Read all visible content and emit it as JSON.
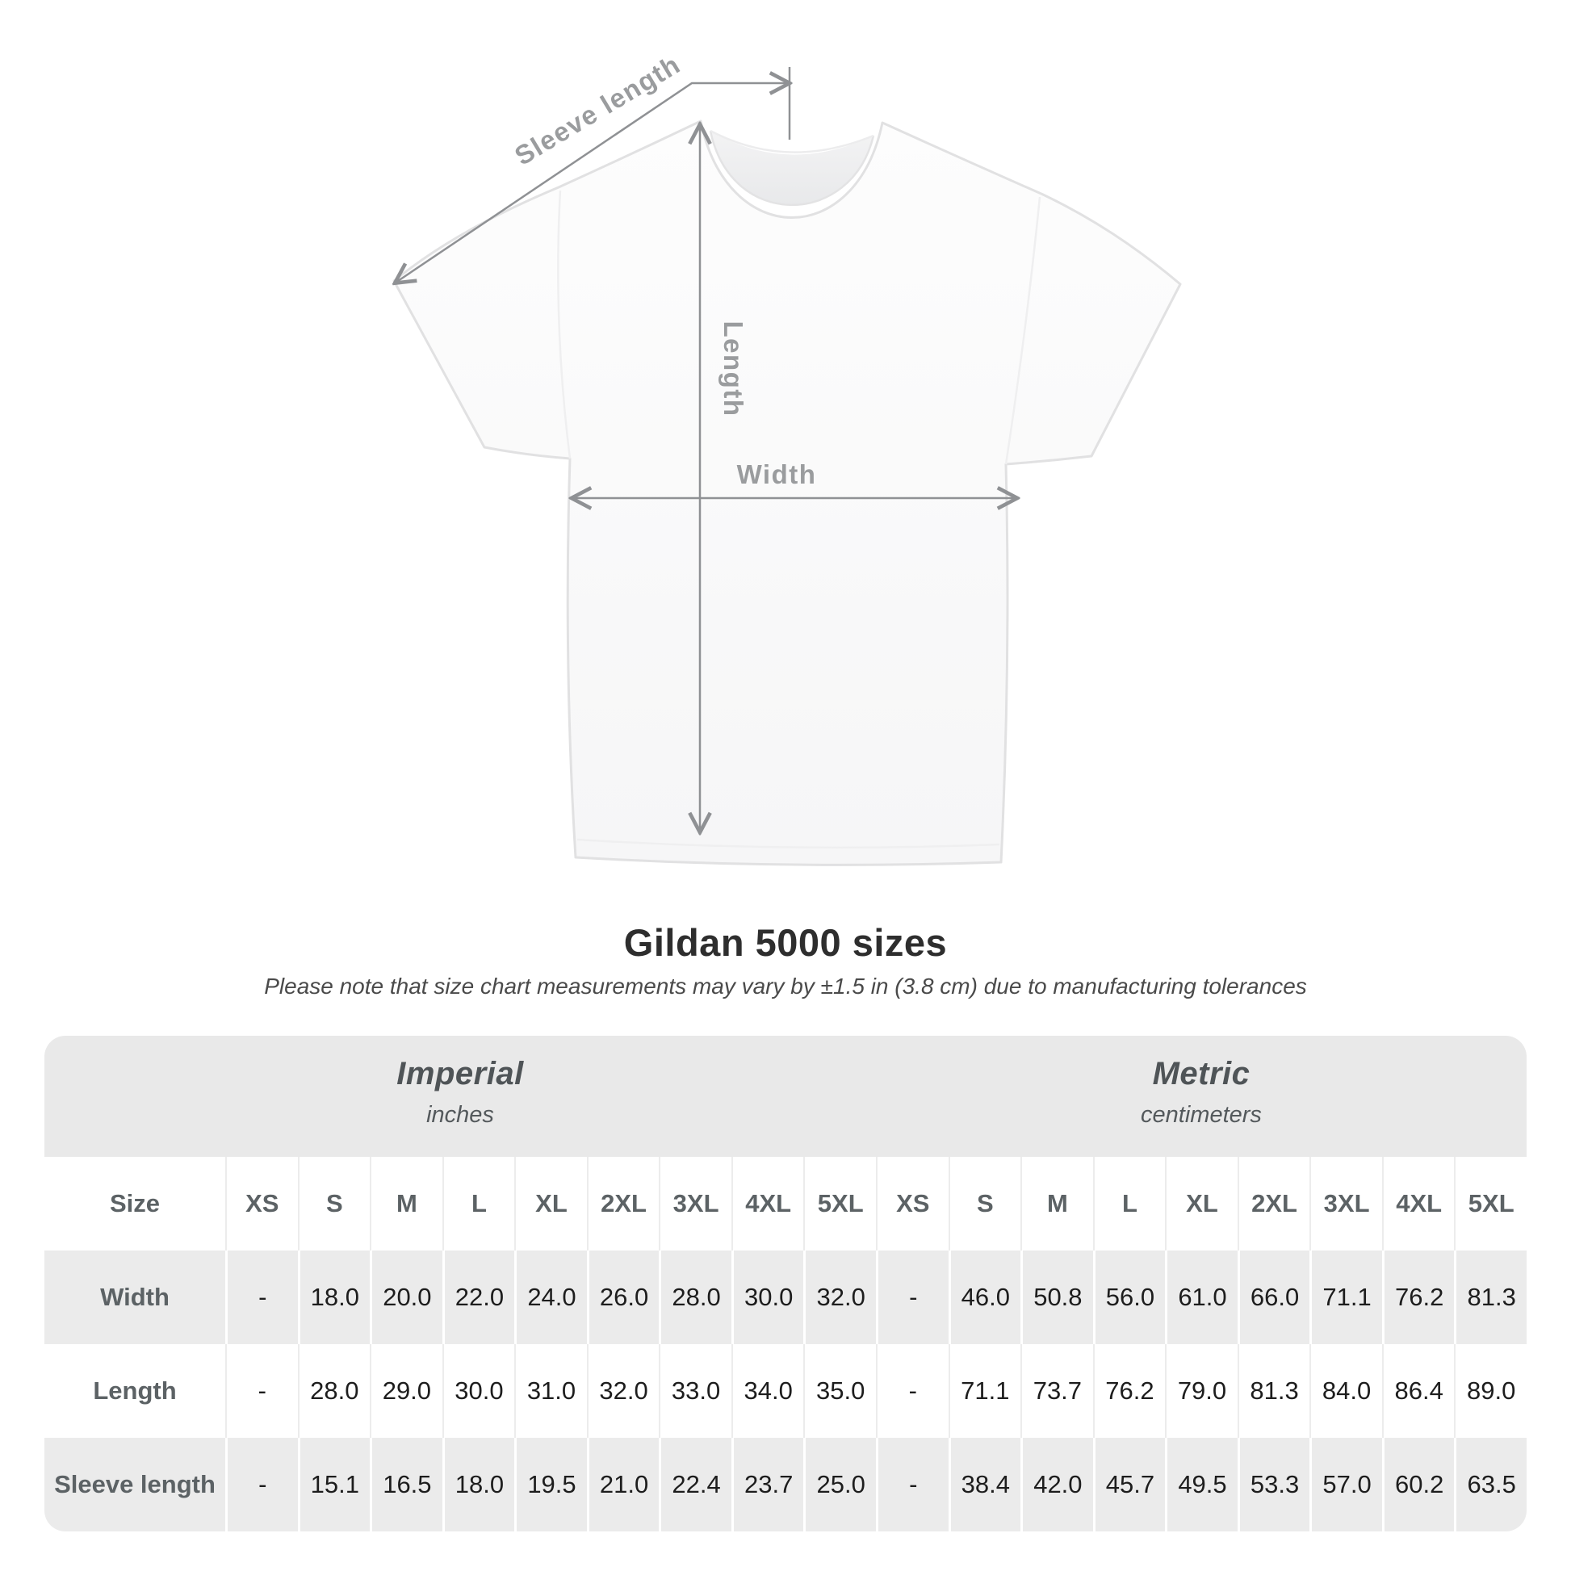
{
  "diagram": {
    "sleeve_length_label": "Sleeve length",
    "length_label": "Length",
    "width_label": "Width"
  },
  "chart_data": {
    "type": "table",
    "title": "Gildan 5000 sizes",
    "subtitle": "Please note that size chart measurements may vary by ±1.5 in (3.8 cm) due to manufacturing tolerances",
    "unit_groups": [
      {
        "label": "Imperial",
        "sublabel": "inches"
      },
      {
        "label": "Metric",
        "sublabel": "centimeters"
      }
    ],
    "size_column_header": "Size",
    "size_headers": [
      "XS",
      "S",
      "M",
      "L",
      "XL",
      "2XL",
      "3XL",
      "4XL",
      "5XL"
    ],
    "rows": [
      {
        "label": "Width",
        "values": [
          "-",
          "18.0",
          "20.0",
          "22.0",
          "24.0",
          "26.0",
          "28.0",
          "30.0",
          "32.0",
          "-",
          "46.0",
          "50.8",
          "56.0",
          "61.0",
          "66.0",
          "71.1",
          "76.2",
          "81.3"
        ]
      },
      {
        "label": "Length",
        "values": [
          "-",
          "28.0",
          "29.0",
          "30.0",
          "31.0",
          "32.0",
          "33.0",
          "34.0",
          "35.0",
          "-",
          "71.1",
          "73.7",
          "76.2",
          "79.0",
          "81.3",
          "84.0",
          "86.4",
          "89.0"
        ]
      },
      {
        "label": "Sleeve length",
        "values": [
          "-",
          "15.1",
          "16.5",
          "18.0",
          "19.5",
          "21.0",
          "22.4",
          "23.7",
          "25.0",
          "-",
          "38.4",
          "42.0",
          "45.7",
          "49.5",
          "53.3",
          "57.0",
          "60.2",
          "63.5"
        ]
      }
    ]
  },
  "colors": {
    "table_band_gray": "#e9e9e9",
    "table_row_gray": "#ebebeb",
    "value_text": "#1d1d1d",
    "header_text_gray": "#5c6265",
    "diagram_line_gray": "#8f9194",
    "diagram_label_gray": "#9a9c9e"
  }
}
